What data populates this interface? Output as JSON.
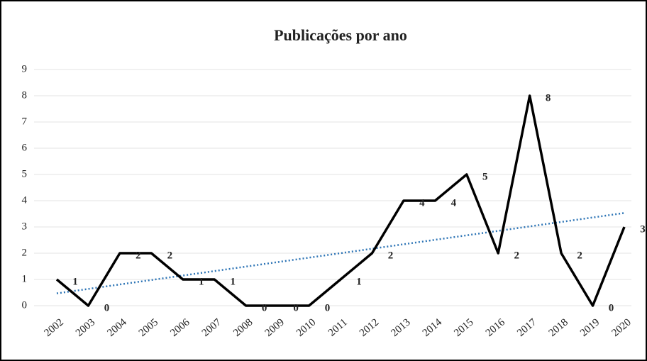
{
  "chart_data": {
    "type": "line",
    "title": "Publicações por ano",
    "categories": [
      "2002",
      "2003",
      "2004",
      "2005",
      "2006",
      "2007",
      "2008",
      "2009",
      "2010",
      "2011",
      "2012",
      "2013",
      "2014",
      "2015",
      "2016",
      "2017",
      "2018",
      "2019",
      "2020"
    ],
    "series": [
      {
        "name": "Publicações",
        "color": "#000000",
        "values": [
          1,
          0,
          2,
          2,
          1,
          1,
          0,
          0,
          0,
          1,
          2,
          4,
          4,
          5,
          2,
          8,
          2,
          0,
          3
        ]
      }
    ],
    "trendline": {
      "type": "linear",
      "color": "#2e75b6"
    },
    "ylim": [
      0,
      9
    ],
    "yticks": [
      0,
      1,
      2,
      3,
      4,
      5,
      6,
      7,
      8,
      9
    ],
    "grid": true
  }
}
